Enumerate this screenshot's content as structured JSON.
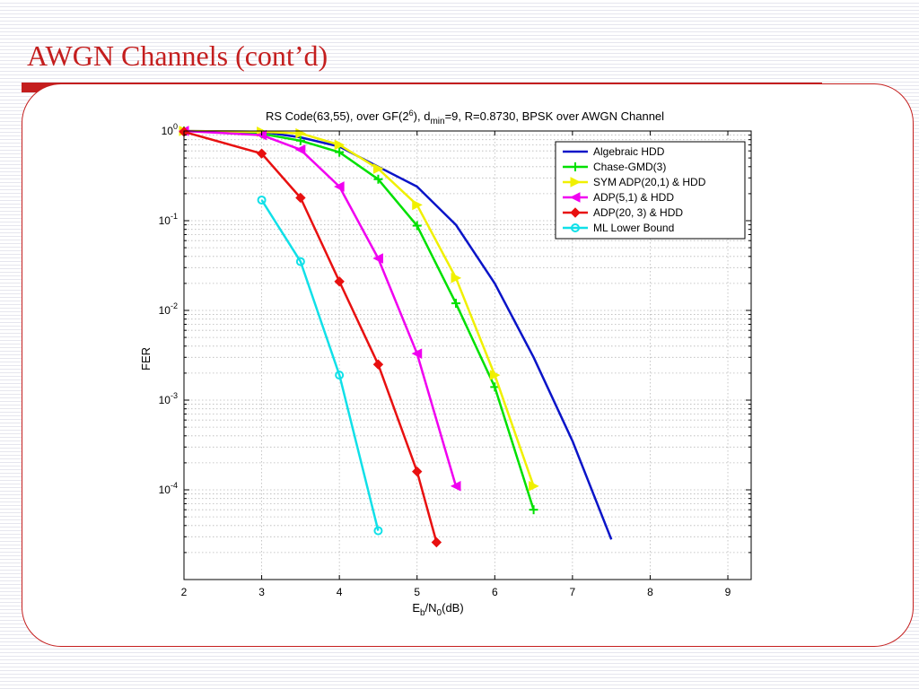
{
  "slide": {
    "title": "AWGN Channels (cont’d)"
  },
  "colors": {
    "accent": "#c41e1e"
  },
  "chart_data": {
    "type": "line",
    "title": "RS Code(63,55), over GF(2⁶), d_min=9, R=0.8730, BPSK over AWGN Channel",
    "title_parts": {
      "a": "RS Code(63,55), over GF(2",
      "b": "6",
      "c": "), d",
      "d": "min",
      "e": "=9, R=0.8730, BPSK over AWGN Channel"
    },
    "xlabel_parts": {
      "a": "E",
      "b": "b",
      "c": "/N",
      "d": "0",
      "e": "(dB)"
    },
    "ylabel": "FER",
    "xlim": [
      2,
      9.3
    ],
    "ylim": [
      1e-05,
      1
    ],
    "yscale": "log",
    "grid": true,
    "legend_position": "top-right",
    "x_ticks": [
      "2",
      "3",
      "4",
      "5",
      "6",
      "7",
      "8",
      "9"
    ],
    "y_ticks": [
      {
        "base": "10",
        "exp": "0"
      },
      {
        "base": "10",
        "exp": "-1"
      },
      {
        "base": "10",
        "exp": "-2"
      },
      {
        "base": "10",
        "exp": "-3"
      },
      {
        "base": "10",
        "exp": "-4"
      }
    ],
    "series": [
      {
        "name": "Algebraic HDD",
        "color": "#0a14c8",
        "marker": "none",
        "x": [
          2,
          3,
          3.5,
          4,
          4.5,
          5,
          5.5,
          6,
          6.5,
          7,
          7.5
        ],
        "y": [
          1,
          0.98,
          0.85,
          0.67,
          0.4,
          0.24,
          0.09,
          0.02,
          0.003,
          0.00035,
          2.8e-05
        ]
      },
      {
        "name": "Chase-GMD(3)",
        "color": "#00e000",
        "marker": "plus",
        "x": [
          2,
          3,
          3.5,
          4,
          4.5,
          5,
          5.5,
          6,
          6.5
        ],
        "y": [
          1,
          0.93,
          0.78,
          0.58,
          0.29,
          0.088,
          0.012,
          0.0014,
          6e-05
        ]
      },
      {
        "name": "SYM ADP(20,1) & HDD",
        "color": "#f0f000",
        "marker": "triangle-right",
        "x": [
          2,
          3,
          3.5,
          4,
          4.5,
          5,
          5.5,
          6,
          6.5
        ],
        "y": [
          1,
          0.98,
          0.94,
          0.7,
          0.38,
          0.15,
          0.023,
          0.0019,
          0.00011
        ]
      },
      {
        "name": "ADP(5,1) & HDD",
        "color": "#f000f0",
        "marker": "triangle-left",
        "x": [
          2,
          3,
          3.5,
          4,
          4.5,
          5,
          5.5
        ],
        "y": [
          1,
          0.9,
          0.62,
          0.24,
          0.038,
          0.0033,
          0.00011
        ]
      },
      {
        "name": "ADP(20, 3) & HDD",
        "color": "#e81010",
        "marker": "diamond",
        "x": [
          2,
          3,
          3.5,
          4,
          4.5,
          5,
          5.25
        ],
        "y": [
          0.98,
          0.56,
          0.18,
          0.021,
          0.0025,
          0.00016,
          2.6e-05
        ]
      },
      {
        "name": "ML Lower Bound",
        "color": "#10e0e8",
        "marker": "circle",
        "x": [
          3,
          3.5,
          4,
          4.5
        ],
        "y": [
          0.17,
          0.035,
          0.0019,
          3.5e-05
        ]
      }
    ]
  }
}
